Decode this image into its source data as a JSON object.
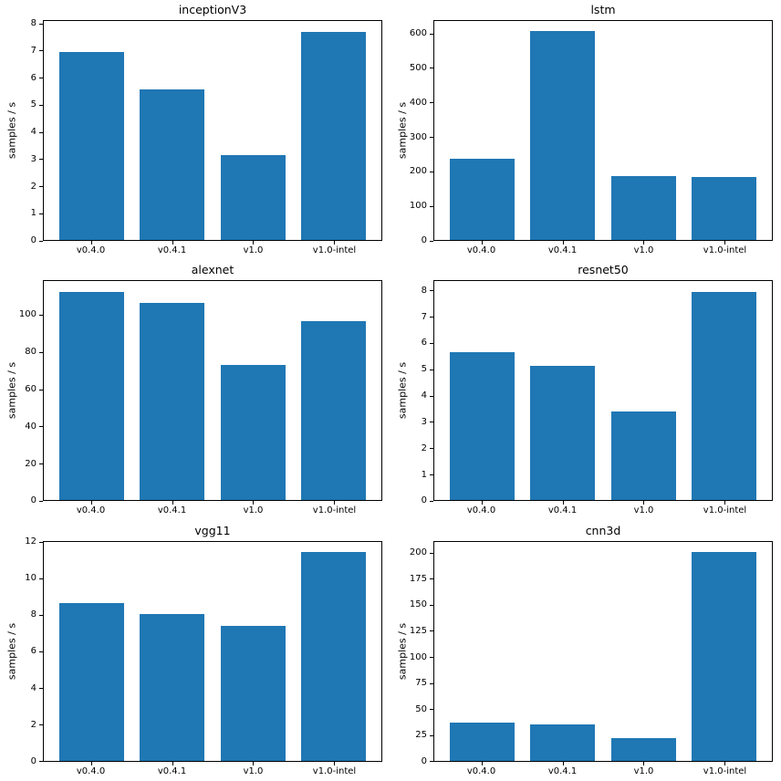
{
  "figure": {
    "background": "#ffffff",
    "bar_color": "#1f77b4",
    "axis_color": "#000000",
    "categories": [
      "v0.4.0",
      "v0.4.1",
      "v1.0",
      "v1.0-intel"
    ]
  },
  "chart_data": [
    {
      "type": "bar",
      "title": "inceptionV3",
      "xlabel": "",
      "ylabel": "samples / s",
      "categories": [
        "v0.4.0",
        "v0.4.1",
        "v1.0",
        "v1.0-intel"
      ],
      "values": [
        7.0,
        5.6,
        3.15,
        7.75
      ],
      "ylim": [
        0,
        8.14
      ],
      "yticks": [
        0,
        1,
        2,
        3,
        4,
        5,
        6,
        7,
        8
      ],
      "grid": false,
      "legend": null
    },
    {
      "type": "bar",
      "title": "lstm",
      "xlabel": "",
      "ylabel": "samples / s",
      "categories": [
        "v0.4.0",
        "v0.4.1",
        "v1.0",
        "v1.0-intel"
      ],
      "values": [
        238,
        610,
        187,
        183
      ],
      "ylim": [
        0,
        640
      ],
      "yticks": [
        0,
        100,
        200,
        300,
        400,
        500,
        600
      ],
      "grid": false,
      "legend": null
    },
    {
      "type": "bar",
      "title": "alexnet",
      "xlabel": "",
      "ylabel": "samples / s",
      "categories": [
        "v0.4.0",
        "v0.4.1",
        "v1.0",
        "v1.0-intel"
      ],
      "values": [
        113,
        107,
        73.5,
        97
      ],
      "ylim": [
        0,
        118.7
      ],
      "yticks": [
        0,
        20,
        40,
        60,
        80,
        100
      ],
      "grid": false,
      "legend": null
    },
    {
      "type": "bar",
      "title": "resnet50",
      "xlabel": "",
      "ylabel": "samples / s",
      "categories": [
        "v0.4.0",
        "v0.4.1",
        "v1.0",
        "v1.0-intel"
      ],
      "values": [
        5.67,
        5.15,
        3.42,
        8.0
      ],
      "ylim": [
        0,
        8.4
      ],
      "yticks": [
        0,
        1,
        2,
        3,
        4,
        5,
        6,
        7,
        8
      ],
      "grid": false,
      "legend": null
    },
    {
      "type": "bar",
      "title": "vgg11",
      "xlabel": "",
      "ylabel": "samples / s",
      "categories": [
        "v0.4.0",
        "v0.4.1",
        "v1.0",
        "v1.0-intel"
      ],
      "values": [
        8.7,
        8.1,
        7.45,
        11.5
      ],
      "ylim": [
        0,
        12.08
      ],
      "yticks": [
        0,
        2,
        4,
        6,
        8,
        10,
        12
      ],
      "grid": false,
      "legend": null
    },
    {
      "type": "bar",
      "title": "cnn3d",
      "xlabel": "",
      "ylabel": "samples / s",
      "categories": [
        "v0.4.0",
        "v0.4.1",
        "v1.0",
        "v1.0-intel"
      ],
      "values": [
        37,
        35,
        21.5,
        202
      ],
      "ylim": [
        0,
        212
      ],
      "yticks": [
        0,
        25,
        50,
        75,
        100,
        125,
        150,
        175,
        200
      ],
      "grid": false,
      "legend": null
    }
  ]
}
